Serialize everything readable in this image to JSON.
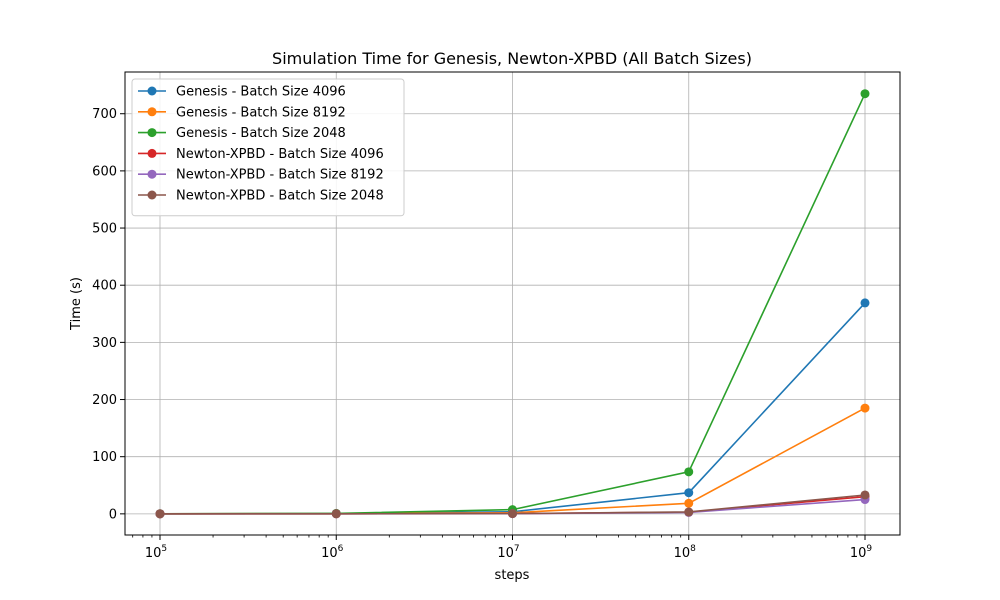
{
  "chart_data": {
    "type": "line",
    "title": "Simulation Time for Genesis, Newton-XPBD (All Batch Sizes)",
    "xlabel": "steps",
    "ylabel": "Time (s)",
    "x_scale": "log",
    "x": [
      100000,
      1000000,
      10000000,
      100000000,
      1000000000
    ],
    "x_tick_labels": [
      {
        "base": "10",
        "exp": "5"
      },
      {
        "base": "10",
        "exp": "6"
      },
      {
        "base": "10",
        "exp": "7"
      },
      {
        "base": "10",
        "exp": "8"
      },
      {
        "base": "10",
        "exp": "9"
      }
    ],
    "y_ticks": [
      0,
      100,
      200,
      300,
      400,
      500,
      600,
      700
    ],
    "y_tick_labels": [
      "0",
      "100",
      "200",
      "300",
      "400",
      "500",
      "600",
      "700"
    ],
    "ylim": [
      -37,
      773
    ],
    "grid": true,
    "legend_position": "top-left",
    "series": [
      {
        "name": "Genesis - Batch Size 4096",
        "color": "#1f77b4",
        "values": [
          0.1,
          0.5,
          3.7,
          37,
          369
        ]
      },
      {
        "name": "Genesis - Batch Size 8192",
        "color": "#ff7f0e",
        "values": [
          0.1,
          0.3,
          1.9,
          18.5,
          185
        ]
      },
      {
        "name": "Genesis - Batch Size 2048",
        "color": "#2ca02c",
        "values": [
          0.1,
          0.8,
          7.4,
          73.5,
          735
        ]
      },
      {
        "name": "Newton-XPBD - Batch Size 4096",
        "color": "#d62728",
        "values": [
          0.05,
          0.1,
          0.4,
          3,
          30
        ]
      },
      {
        "name": "Newton-XPBD - Batch Size 8192",
        "color": "#9467bd",
        "values": [
          0.05,
          0.1,
          0.3,
          2.5,
          25
        ]
      },
      {
        "name": "Newton-XPBD - Batch Size 2048",
        "color": "#8c564b",
        "values": [
          0.05,
          0.1,
          0.4,
          3.3,
          33
        ]
      }
    ]
  }
}
